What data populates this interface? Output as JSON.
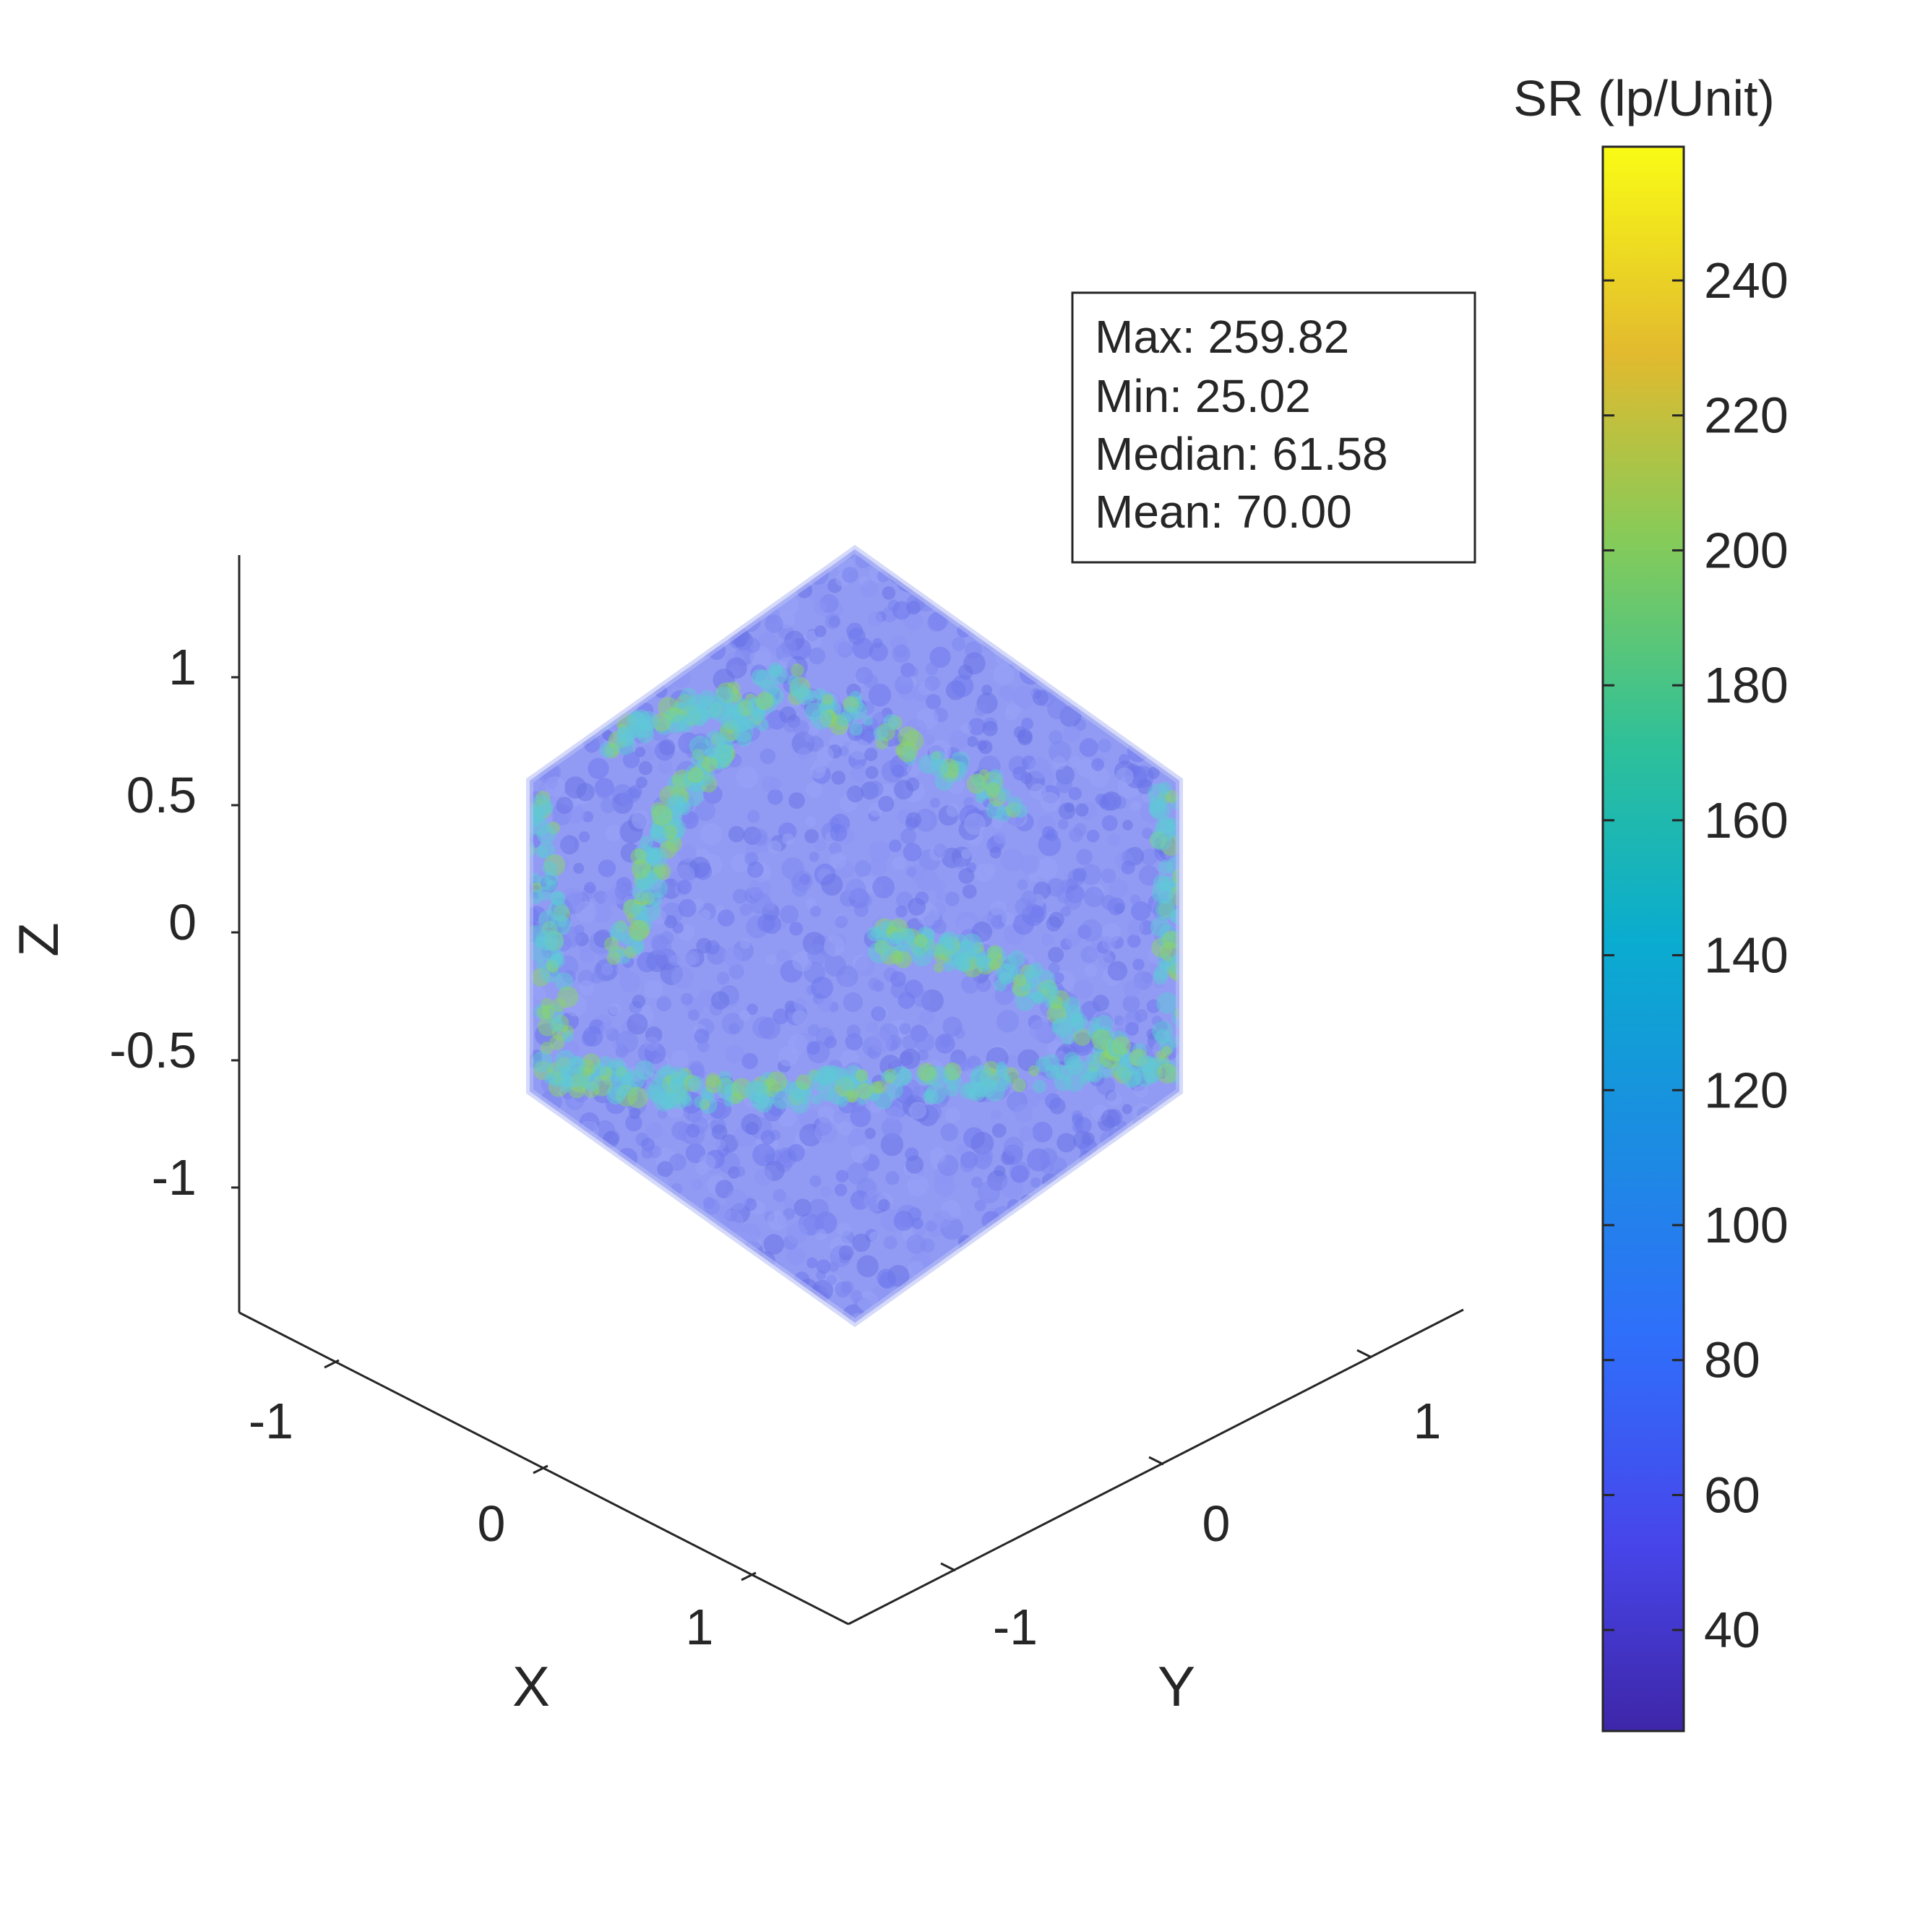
{
  "chart_data": {
    "type": "scatter3d",
    "shape": "icosahedron point cloud",
    "xlabel": "X",
    "ylabel": "Y",
    "zlabel": "Z",
    "x_ticks": [
      "-1",
      "0",
      "1"
    ],
    "y_ticks": [
      "-1",
      "0",
      "1"
    ],
    "z_ticks": [
      "1",
      "0.5",
      "0",
      "-0.5",
      "-1"
    ],
    "xlim": [
      -1.4,
      1.4
    ],
    "ylim": [
      -1.4,
      1.4
    ],
    "zlim": [
      -1.4,
      1.4
    ],
    "grid": false,
    "colorbar": {
      "label": "SR (lp/Unit)",
      "ticks": [
        "240",
        "220",
        "200",
        "180",
        "160",
        "140",
        "120",
        "100",
        "80",
        "60",
        "40"
      ],
      "range": [
        25.02,
        259.82
      ],
      "colormap": "parula"
    },
    "stats_box": {
      "lines": [
        "Max: 259.82",
        "Min: 25.02",
        "Median: 61.58",
        "Mean: 70.00"
      ]
    },
    "colors": {
      "base_points": "#7d87f0",
      "edge_points": "#5fc8d8",
      "highlight_points": "#8ad36a"
    }
  }
}
